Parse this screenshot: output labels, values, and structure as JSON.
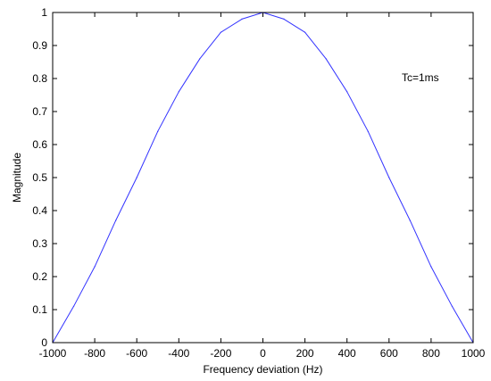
{
  "chart_data": {
    "type": "line",
    "xlabel": "Frequency deviation (Hz)",
    "ylabel": "Magnitude",
    "xlim": [
      -1000,
      1000
    ],
    "ylim": [
      0,
      1
    ],
    "xticks": [
      "-1000",
      "-800",
      "-600",
      "-400",
      "-200",
      "0",
      "200",
      "400",
      "600",
      "800",
      "1000"
    ],
    "yticks": [
      "0",
      "0.1",
      "0.2",
      "0.3",
      "0.4",
      "0.5",
      "0.6",
      "0.7",
      "0.8",
      "0.9",
      "1"
    ],
    "grid": false,
    "annotation": "Tc=1ms",
    "series": [
      {
        "color": "#3333ff",
        "x": [
          -1000,
          -900,
          -800,
          -700,
          -600,
          -500,
          -400,
          -300,
          -200,
          -100,
          0,
          100,
          200,
          300,
          400,
          500,
          600,
          700,
          800,
          900,
          1000
        ],
        "y": [
          0.0,
          0.11,
          0.23,
          0.37,
          0.5,
          0.64,
          0.76,
          0.86,
          0.94,
          0.98,
          1.0,
          0.98,
          0.94,
          0.86,
          0.76,
          0.64,
          0.5,
          0.37,
          0.23,
          0.11,
          0.0
        ]
      }
    ]
  }
}
